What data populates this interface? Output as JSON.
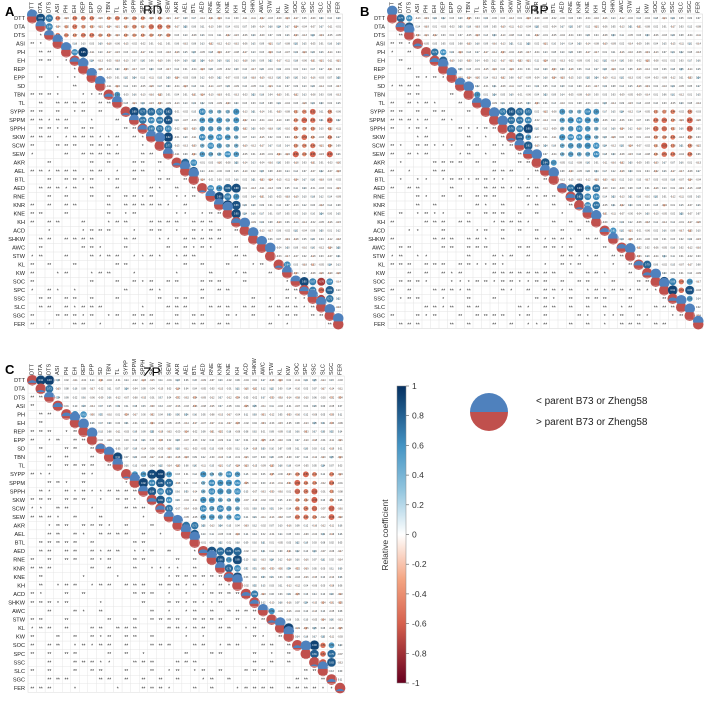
{
  "chart_data": {
    "type": "heatmap",
    "variables": [
      "DTT",
      "DTA",
      "DTS",
      "ASI",
      "PH",
      "EH",
      "REP",
      "EPP",
      "SD",
      "TBN",
      "TL",
      "SYPP",
      "SPPM",
      "SPPH",
      "SKW",
      "SCW",
      "SEW",
      "AKR",
      "AEL",
      "BTL",
      "AED",
      "RNE",
      "KNR",
      "KNE",
      "KH",
      "ACD",
      "SHKW",
      "AWC",
      "STW",
      "KL",
      "KW",
      "SOC",
      "SPC",
      "SSC",
      "SLC",
      "SGC",
      "FER"
    ],
    "panels": [
      {
        "label": "A",
        "title": "BD"
      },
      {
        "label": "B",
        "title": "BP"
      },
      {
        "label": "C",
        "title": "ZP"
      }
    ],
    "colorbar": {
      "label": "Relative coefficient",
      "ticks": [
        "1",
        "0.8",
        "0.6",
        "0.4",
        "0.2",
        "0",
        "-0.2",
        "-0.4",
        "-0.6",
        "-0.8",
        "-1"
      ],
      "range": [
        -1,
        1
      ],
      "colors": {
        "neg": "#67001f",
        "mid": "#ffffff",
        "pos": "#053061"
      }
    },
    "legend": {
      "upper_label": "< parent B73 or Zheng58",
      "lower_label": "> parent B73 or Zheng58",
      "upper_color": "#4f81bd",
      "lower_color": "#c0504d"
    },
    "significance_marks": [
      "**",
      "*"
    ]
  }
}
